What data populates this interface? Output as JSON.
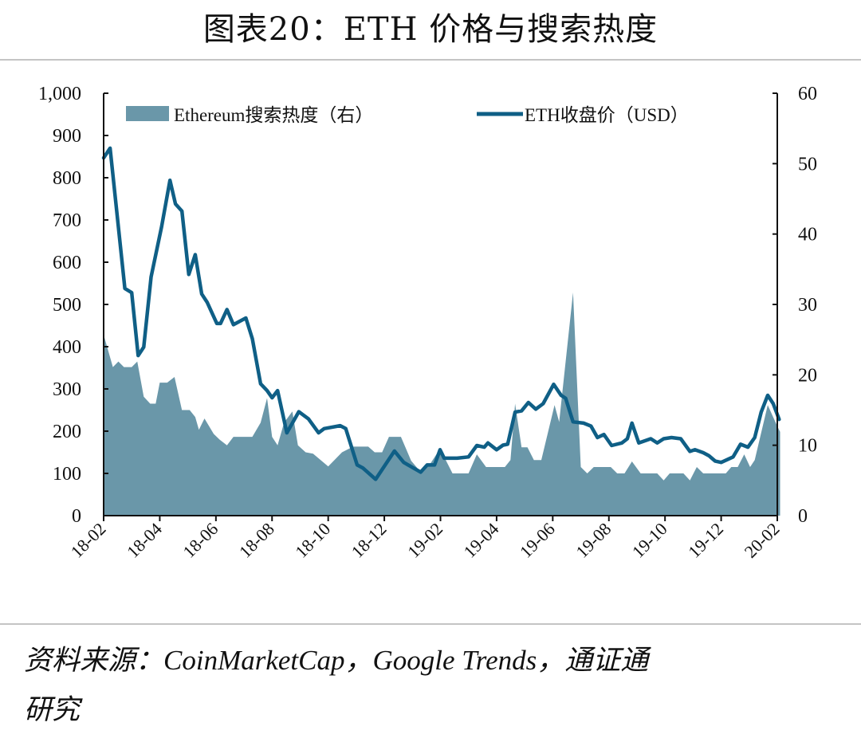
{
  "title": "图表20：ETH 价格与搜索热度",
  "source": {
    "line1": "资料来源：CoinMarketCap，Google Trends，通证通",
    "line2": "研究"
  },
  "colors": {
    "area": "#6a97a9",
    "line": "#0f5f86",
    "axis": "#111111",
    "rule": "#c4c4c4"
  },
  "chart_data": {
    "type": "line+area",
    "title": "图表20：ETH 价格与搜索热度",
    "legend_position": "top",
    "grid": false,
    "x_tick_labels": [
      "18-02",
      "18-04",
      "18-06",
      "18-08",
      "18-10",
      "18-12",
      "19-02",
      "19-04",
      "19-06",
      "19-08",
      "19-10",
      "19-12",
      "20-02"
    ],
    "y_left": {
      "range": [
        0,
        1000
      ],
      "ticks": [
        "0",
        "100",
        "200",
        "300",
        "400",
        "500",
        "600",
        "700",
        "800",
        "900",
        "1,000"
      ]
    },
    "y_right": {
      "range": [
        0,
        60
      ],
      "ticks": [
        "0",
        "10",
        "20",
        "30",
        "40",
        "50",
        "60"
      ]
    },
    "series": [
      {
        "name": "Ethereum搜索热度（右）",
        "type": "area",
        "axis": "right",
        "points": [
          [
            "2018-02-01",
            25.7
          ],
          [
            "2018-02-11",
            21.1
          ],
          [
            "2018-02-17",
            21.9
          ],
          [
            "2018-02-23",
            21.1
          ],
          [
            "2018-03-01",
            21.1
          ],
          [
            "2018-03-07",
            21.9
          ],
          [
            "2018-03-14",
            16.9
          ],
          [
            "2018-03-21",
            15.9
          ],
          [
            "2018-03-27",
            15.9
          ],
          [
            "2018-04-01",
            18.9
          ],
          [
            "2018-04-09",
            18.9
          ],
          [
            "2018-04-17",
            19.7
          ],
          [
            "2018-04-25",
            15.0
          ],
          [
            "2018-05-03",
            15.0
          ],
          [
            "2018-05-09",
            14.0
          ],
          [
            "2018-05-13",
            12.2
          ],
          [
            "2018-05-19",
            13.8
          ],
          [
            "2018-05-29",
            11.6
          ],
          [
            "2018-06-05",
            10.8
          ],
          [
            "2018-06-13",
            10.0
          ],
          [
            "2018-06-20",
            11.2
          ],
          [
            "2018-07-02",
            11.2
          ],
          [
            "2018-07-10",
            11.2
          ],
          [
            "2018-07-19",
            13.2
          ],
          [
            "2018-07-26",
            16.7
          ],
          [
            "2018-08-01",
            11.2
          ],
          [
            "2018-08-07",
            10.0
          ],
          [
            "2018-08-14",
            13.2
          ],
          [
            "2018-08-23",
            14.8
          ],
          [
            "2018-08-29",
            10.0
          ],
          [
            "2018-09-07",
            9.0
          ],
          [
            "2018-09-15",
            8.8
          ],
          [
            "2018-10-01",
            7.0
          ],
          [
            "2018-10-16",
            9.0
          ],
          [
            "2018-10-28",
            9.8
          ],
          [
            "2018-11-14",
            9.8
          ],
          [
            "2018-11-21",
            9.0
          ],
          [
            "2018-11-29",
            9.0
          ],
          [
            "2018-12-06",
            11.2
          ],
          [
            "2018-12-19",
            11.2
          ],
          [
            "2018-12-30",
            7.8
          ],
          [
            "2019-01-10",
            6.2
          ],
          [
            "2019-01-20",
            7.3
          ],
          [
            "2019-01-31",
            9.5
          ],
          [
            "2019-02-14",
            6.0
          ],
          [
            "2019-03-01",
            6.0
          ],
          [
            "2019-03-10",
            8.7
          ],
          [
            "2019-03-20",
            6.9
          ],
          [
            "2019-03-31",
            6.9
          ],
          [
            "2019-04-10",
            6.9
          ],
          [
            "2019-04-16",
            7.9
          ],
          [
            "2019-04-21",
            15.9
          ],
          [
            "2019-04-28",
            9.7
          ],
          [
            "2019-05-04",
            9.7
          ],
          [
            "2019-05-11",
            7.9
          ],
          [
            "2019-05-19",
            7.9
          ],
          [
            "2019-06-03",
            15.7
          ],
          [
            "2019-06-08",
            13.3
          ],
          [
            "2019-06-23",
            31.7
          ],
          [
            "2019-07-01",
            6.9
          ],
          [
            "2019-07-08",
            6.0
          ],
          [
            "2019-07-15",
            6.9
          ],
          [
            "2019-08-03",
            6.9
          ],
          [
            "2019-08-10",
            6.0
          ],
          [
            "2019-08-18",
            6.0
          ],
          [
            "2019-08-26",
            7.7
          ],
          [
            "2019-09-05",
            6.0
          ],
          [
            "2019-09-23",
            6.0
          ],
          [
            "2019-09-30",
            5.0
          ],
          [
            "2019-10-06",
            6.0
          ],
          [
            "2019-10-21",
            6.0
          ],
          [
            "2019-10-28",
            5.0
          ],
          [
            "2019-11-05",
            6.9
          ],
          [
            "2019-11-12",
            6.0
          ],
          [
            "2019-12-06",
            6.0
          ],
          [
            "2019-12-12",
            6.9
          ],
          [
            "2019-12-19",
            6.9
          ],
          [
            "2019-12-26",
            8.7
          ],
          [
            "2020-01-02",
            6.9
          ],
          [
            "2020-01-07",
            7.9
          ],
          [
            "2020-01-21",
            15.7
          ],
          [
            "2020-02-01",
            12.7
          ],
          [
            "2020-02-04",
            11.9
          ]
        ]
      },
      {
        "name": "ETH收盘价（USD）",
        "type": "line",
        "axis": "left",
        "points": [
          [
            "2018-02-01",
            847
          ],
          [
            "2018-02-08",
            870
          ],
          [
            "2018-02-24",
            538
          ],
          [
            "2018-03-01",
            528
          ],
          [
            "2018-03-08",
            379
          ],
          [
            "2018-03-14",
            399
          ],
          [
            "2018-03-22",
            565
          ],
          [
            "2018-04-03",
            684
          ],
          [
            "2018-04-12",
            794
          ],
          [
            "2018-04-18",
            738
          ],
          [
            "2018-04-25",
            721
          ],
          [
            "2018-05-02",
            571
          ],
          [
            "2018-05-09",
            618
          ],
          [
            "2018-05-16",
            525
          ],
          [
            "2018-05-22",
            505
          ],
          [
            "2018-06-02",
            455
          ],
          [
            "2018-06-06",
            455
          ],
          [
            "2018-06-13",
            488
          ],
          [
            "2018-06-20",
            452
          ],
          [
            "2018-07-03",
            468
          ],
          [
            "2018-07-10",
            419
          ],
          [
            "2018-07-19",
            312
          ],
          [
            "2018-07-26",
            296
          ],
          [
            "2018-08-01",
            279
          ],
          [
            "2018-08-07",
            296
          ],
          [
            "2018-08-17",
            196
          ],
          [
            "2018-08-30",
            246
          ],
          [
            "2018-09-10",
            229
          ],
          [
            "2018-09-21",
            196
          ],
          [
            "2018-09-27",
            206
          ],
          [
            "2018-10-14",
            213
          ],
          [
            "2018-10-20",
            206
          ],
          [
            "2018-11-02",
            120
          ],
          [
            "2018-11-08",
            113
          ],
          [
            "2018-11-22",
            86
          ],
          [
            "2018-12-12",
            153
          ],
          [
            "2018-12-22",
            126
          ],
          [
            "2019-01-10",
            103
          ],
          [
            "2019-01-17",
            120
          ],
          [
            "2019-01-25",
            120
          ],
          [
            "2019-01-31",
            156
          ],
          [
            "2019-02-05",
            136
          ],
          [
            "2019-02-19",
            136
          ],
          [
            "2019-03-01",
            139
          ],
          [
            "2019-03-10",
            166
          ],
          [
            "2019-03-18",
            162
          ],
          [
            "2019-03-22",
            172
          ],
          [
            "2019-04-01",
            156
          ],
          [
            "2019-04-08",
            167
          ],
          [
            "2019-04-13",
            169
          ],
          [
            "2019-04-21",
            245
          ],
          [
            "2019-04-28",
            248
          ],
          [
            "2019-05-05",
            268
          ],
          [
            "2019-05-13",
            252
          ],
          [
            "2019-05-21",
            265
          ],
          [
            "2019-06-02",
            311
          ],
          [
            "2019-06-10",
            285
          ],
          [
            "2019-06-15",
            278
          ],
          [
            "2019-06-23",
            222
          ],
          [
            "2019-07-04",
            219
          ],
          [
            "2019-07-12",
            212
          ],
          [
            "2019-07-19",
            185
          ],
          [
            "2019-07-26",
            192
          ],
          [
            "2019-08-04",
            166
          ],
          [
            "2019-08-15",
            172
          ],
          [
            "2019-08-21",
            182
          ],
          [
            "2019-08-26",
            219
          ],
          [
            "2019-09-03",
            172
          ],
          [
            "2019-09-16",
            182
          ],
          [
            "2019-09-23",
            172
          ],
          [
            "2019-09-30",
            182
          ],
          [
            "2019-10-08",
            185
          ],
          [
            "2019-10-18",
            182
          ],
          [
            "2019-10-28",
            152
          ],
          [
            "2019-11-03",
            156
          ],
          [
            "2019-11-12",
            149
          ],
          [
            "2019-11-18",
            142
          ],
          [
            "2019-11-25",
            129
          ],
          [
            "2019-12-01",
            126
          ],
          [
            "2019-12-14",
            139
          ],
          [
            "2019-12-22",
            169
          ],
          [
            "2019-12-30",
            162
          ],
          [
            "2020-01-07",
            185
          ],
          [
            "2020-01-14",
            245
          ],
          [
            "2020-01-21",
            285
          ],
          [
            "2020-01-27",
            265
          ],
          [
            "2020-02-03",
            228
          ]
        ]
      }
    ]
  }
}
